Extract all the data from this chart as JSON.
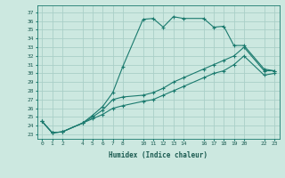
{
  "xlabel": "Humidex (Indice chaleur)",
  "background_color": "#cce8e0",
  "grid_color": "#aacfc8",
  "line_color": "#1a7a6e",
  "xlim": [
    -0.5,
    23.5
  ],
  "ylim": [
    22.5,
    37.8
  ],
  "xticks": [
    0,
    1,
    2,
    4,
    5,
    6,
    7,
    8,
    10,
    11,
    12,
    13,
    14,
    16,
    17,
    18,
    19,
    20,
    22,
    23
  ],
  "yticks": [
    23,
    24,
    25,
    26,
    27,
    28,
    29,
    30,
    31,
    32,
    33,
    34,
    35,
    36,
    37
  ],
  "line1_x": [
    0,
    1,
    2,
    4,
    5,
    6,
    7,
    8,
    10,
    11,
    12,
    13,
    14,
    16,
    17,
    18,
    19,
    20,
    22,
    23
  ],
  "line1_y": [
    24.5,
    23.2,
    23.3,
    24.3,
    25.2,
    26.2,
    27.8,
    30.8,
    36.2,
    36.3,
    35.3,
    36.5,
    36.3,
    36.3,
    35.3,
    35.4,
    33.2,
    33.2,
    30.5,
    30.3
  ],
  "line2_x": [
    0,
    1,
    2,
    4,
    5,
    6,
    7,
    8,
    10,
    11,
    12,
    13,
    14,
    16,
    17,
    18,
    19,
    20,
    22,
    23
  ],
  "line2_y": [
    24.5,
    23.2,
    23.3,
    24.3,
    25.0,
    25.8,
    27.0,
    27.3,
    27.5,
    27.8,
    28.3,
    29.0,
    29.5,
    30.5,
    31.0,
    31.5,
    32.0,
    33.0,
    30.3,
    30.3
  ],
  "line3_x": [
    0,
    1,
    2,
    4,
    5,
    6,
    7,
    8,
    10,
    11,
    12,
    13,
    14,
    16,
    17,
    18,
    19,
    20,
    22,
    23
  ],
  "line3_y": [
    24.5,
    23.2,
    23.3,
    24.3,
    24.8,
    25.3,
    26.0,
    26.3,
    26.8,
    27.0,
    27.5,
    28.0,
    28.5,
    29.5,
    30.0,
    30.3,
    31.0,
    32.0,
    29.8,
    30.0
  ]
}
